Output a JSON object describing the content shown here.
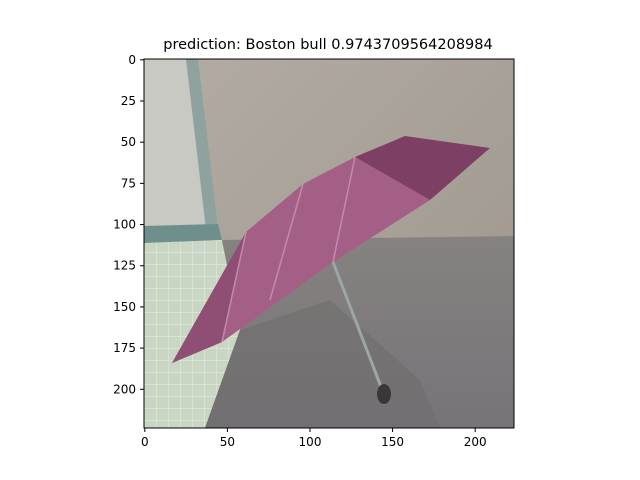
{
  "title": "prediction: Boston bull 0.9743709564208984",
  "x_ticks": [
    "0",
    "50",
    "100",
    "150",
    "200"
  ],
  "y_ticks": [
    "0",
    "25",
    "50",
    "75",
    "100",
    "125",
    "150",
    "175",
    "200"
  ],
  "image": {
    "subject": "pink folding umbrella on the floor against a wall",
    "colors": {
      "wall": "#a79f95",
      "floor": "#7e7b78",
      "window": "#c7c9c2",
      "tiles": "#c9d6c4",
      "umbrella": "#a45f86",
      "umbrella_dark": "#7d3f63",
      "shadow": "#6e6b6c"
    }
  }
}
